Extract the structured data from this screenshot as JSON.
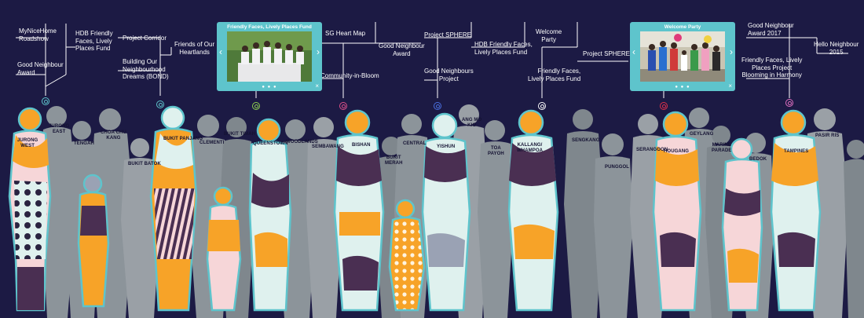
{
  "colors": {
    "background": "#1c1a44",
    "grey_silhouette": "#8c949a",
    "grey_dark": "#6d767c",
    "outline": "#5ec4cc",
    "orange": "#f7a328",
    "plum": "#4a2f52",
    "mint": "#dff1ee",
    "pink": "#f6d6d8",
    "slate": "#9aa2b4",
    "line_white": "#ffffff"
  },
  "timeline_labels": [
    {
      "id": "mynicehome",
      "text": "MyNiceHome\nRoadshow"
    },
    {
      "id": "good-neighbour-award-1",
      "text": "Good Neighbour\nAward"
    },
    {
      "id": "hdb-ffflpf-1",
      "text": "HDB Friendly\nFaces, Lively\nPlaces Fund"
    },
    {
      "id": "project-corridor",
      "text": "Project Corridor"
    },
    {
      "id": "bond",
      "text": "Building Our\nNeighbourhood\nDreams (BOND)"
    },
    {
      "id": "friends-heartlands",
      "text": "Friends of Our\nHeartlands"
    },
    {
      "id": "sg-heart-map",
      "text": "SG Heart Map"
    },
    {
      "id": "good-neighbour-award-2",
      "text": "Good Neighbour\nAward"
    },
    {
      "id": "community-in-bloom",
      "text": "Community-in-Bloom"
    },
    {
      "id": "project-sphere-1",
      "text": "Project SPHERE"
    },
    {
      "id": "good-neighbours-project",
      "text": "Good Neighbours\nProject"
    },
    {
      "id": "welcome-party-label",
      "text": "Welcome\nParty"
    },
    {
      "id": "hdb-ffflpf-2",
      "text": "HDB Friendly Faces,\nLively Places Fund"
    },
    {
      "id": "ffflpf",
      "text": "Friendly Faces,\nLively Places Fund"
    },
    {
      "id": "project-sphere-2",
      "text": "Project SPHERE"
    },
    {
      "id": "gna-2017",
      "text": "Good Neighbour\nAward 2017"
    },
    {
      "id": "hello-neighbour",
      "text": "Hello Neighbour\n2015"
    },
    {
      "id": "ffflp-bloom",
      "text": "Friendly Faces, Lively\nPlaces Project\nBlooming in Harmony"
    }
  ],
  "cards": [
    {
      "id": "card-friendly-faces",
      "title": "Friendly Faces, Lively Places Fund",
      "dots": "● ● ●",
      "prev": "‹",
      "next": "›",
      "close": "×"
    },
    {
      "id": "card-welcome-party",
      "title": "Welcome Party",
      "dots": "● ● ●",
      "prev": "‹",
      "next": "›",
      "close": "×"
    }
  ],
  "towns": [
    {
      "id": "jurong-west",
      "text": "JURONG\nWEST"
    },
    {
      "id": "jurong-east",
      "text": "JURONG\nEAST"
    },
    {
      "id": "tengah",
      "text": "TENGAH"
    },
    {
      "id": "choa-chu-kang",
      "text": "CHOA CHU\nKANG"
    },
    {
      "id": "bukit-batok",
      "text": "BUKIT BATOK"
    },
    {
      "id": "bukit-panjang",
      "text": "BUKIT PANJANG"
    },
    {
      "id": "clementi",
      "text": "CLEMENTI"
    },
    {
      "id": "bukit-timah",
      "text": "BUKIT TIMAH"
    },
    {
      "id": "queenstown",
      "text": "QUEENSTOWN"
    },
    {
      "id": "woodlands",
      "text": "WOODLANDS"
    },
    {
      "id": "sembawang",
      "text": "SEMBAWANG"
    },
    {
      "id": "bishan",
      "text": "BISHAN"
    },
    {
      "id": "bukit-merah",
      "text": "BUKIT\nMERAH"
    },
    {
      "id": "central",
      "text": "CENTRAL"
    },
    {
      "id": "yishun",
      "text": "YISHUN"
    },
    {
      "id": "ang-mo-kio",
      "text": "ANG MO\nKIO"
    },
    {
      "id": "toa-payoh",
      "text": "TOA\nPAYOH"
    },
    {
      "id": "kallang-whampoa",
      "text": "KALLANG/\nWHAMPOA"
    },
    {
      "id": "sengkang",
      "text": "SENGKANG"
    },
    {
      "id": "punggol",
      "text": "PUNGGOL"
    },
    {
      "id": "serangoon",
      "text": "SERANGOON"
    },
    {
      "id": "hougang",
      "text": "HOUGANG"
    },
    {
      "id": "geylang",
      "text": "GEYLANG"
    },
    {
      "id": "marine-parade",
      "text": "MARINE\nPARADE"
    },
    {
      "id": "bedok",
      "text": "BEDOK"
    },
    {
      "id": "tampines",
      "text": "TAMPINES"
    },
    {
      "id": "pasir-ris",
      "text": "PASIR RIS"
    }
  ],
  "pins": [
    {
      "id": "pin-jurong-west",
      "color": "#5ec4cc"
    },
    {
      "id": "pin-bukit-panjang",
      "color": "#5ec4cc"
    },
    {
      "id": "pin-queenstown",
      "color": "#8fd14f"
    },
    {
      "id": "pin-bishan",
      "color": "#e0508a"
    },
    {
      "id": "pin-yishun",
      "color": "#4a6fe0"
    },
    {
      "id": "pin-kallang",
      "color": "#ffffff"
    },
    {
      "id": "pin-hougang",
      "color": "#e0304a"
    },
    {
      "id": "pin-tampines",
      "color": "#e070c0"
    }
  ]
}
